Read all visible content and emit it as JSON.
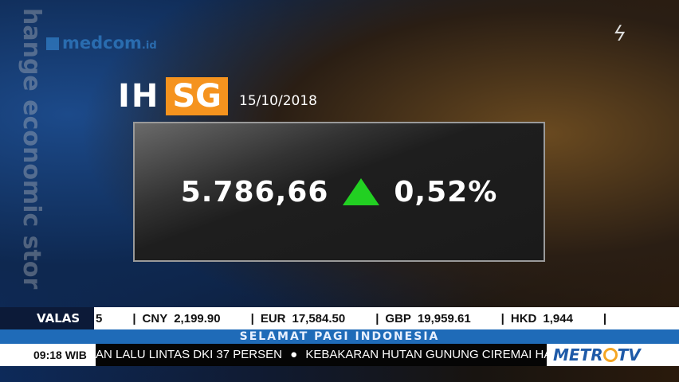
{
  "background_text": {
    "vertical": "hange economic stor"
  },
  "logos": {
    "medcom": "medcom",
    "medcom_suffix": ".id",
    "channel": "METRO TV"
  },
  "ihsg": {
    "title_left": "IH",
    "title_right": "SG",
    "date": "15/10/2018",
    "value": "5.786,66",
    "change": "0,52%",
    "direction": "up",
    "up_color": "#22d022",
    "accent": "#f5931e"
  },
  "valas": {
    "label": "VALAS",
    "partial": "5",
    "rates": [
      {
        "code": "CNY",
        "value": "2,199.90"
      },
      {
        "code": "EUR",
        "value": "17,584.50"
      },
      {
        "code": "GBP",
        "value": "19,959.61"
      },
      {
        "code": "HKD",
        "value": "1,944"
      }
    ]
  },
  "program": "SELAMAT PAGI INDONESIA",
  "ticker": {
    "time": "09:18 WIB",
    "items": [
      "AN LALU LINTAS DKI 37 PERSEN",
      "KEBAKARAN HUTAN GUNUNG CIREMAI HA"
    ]
  }
}
